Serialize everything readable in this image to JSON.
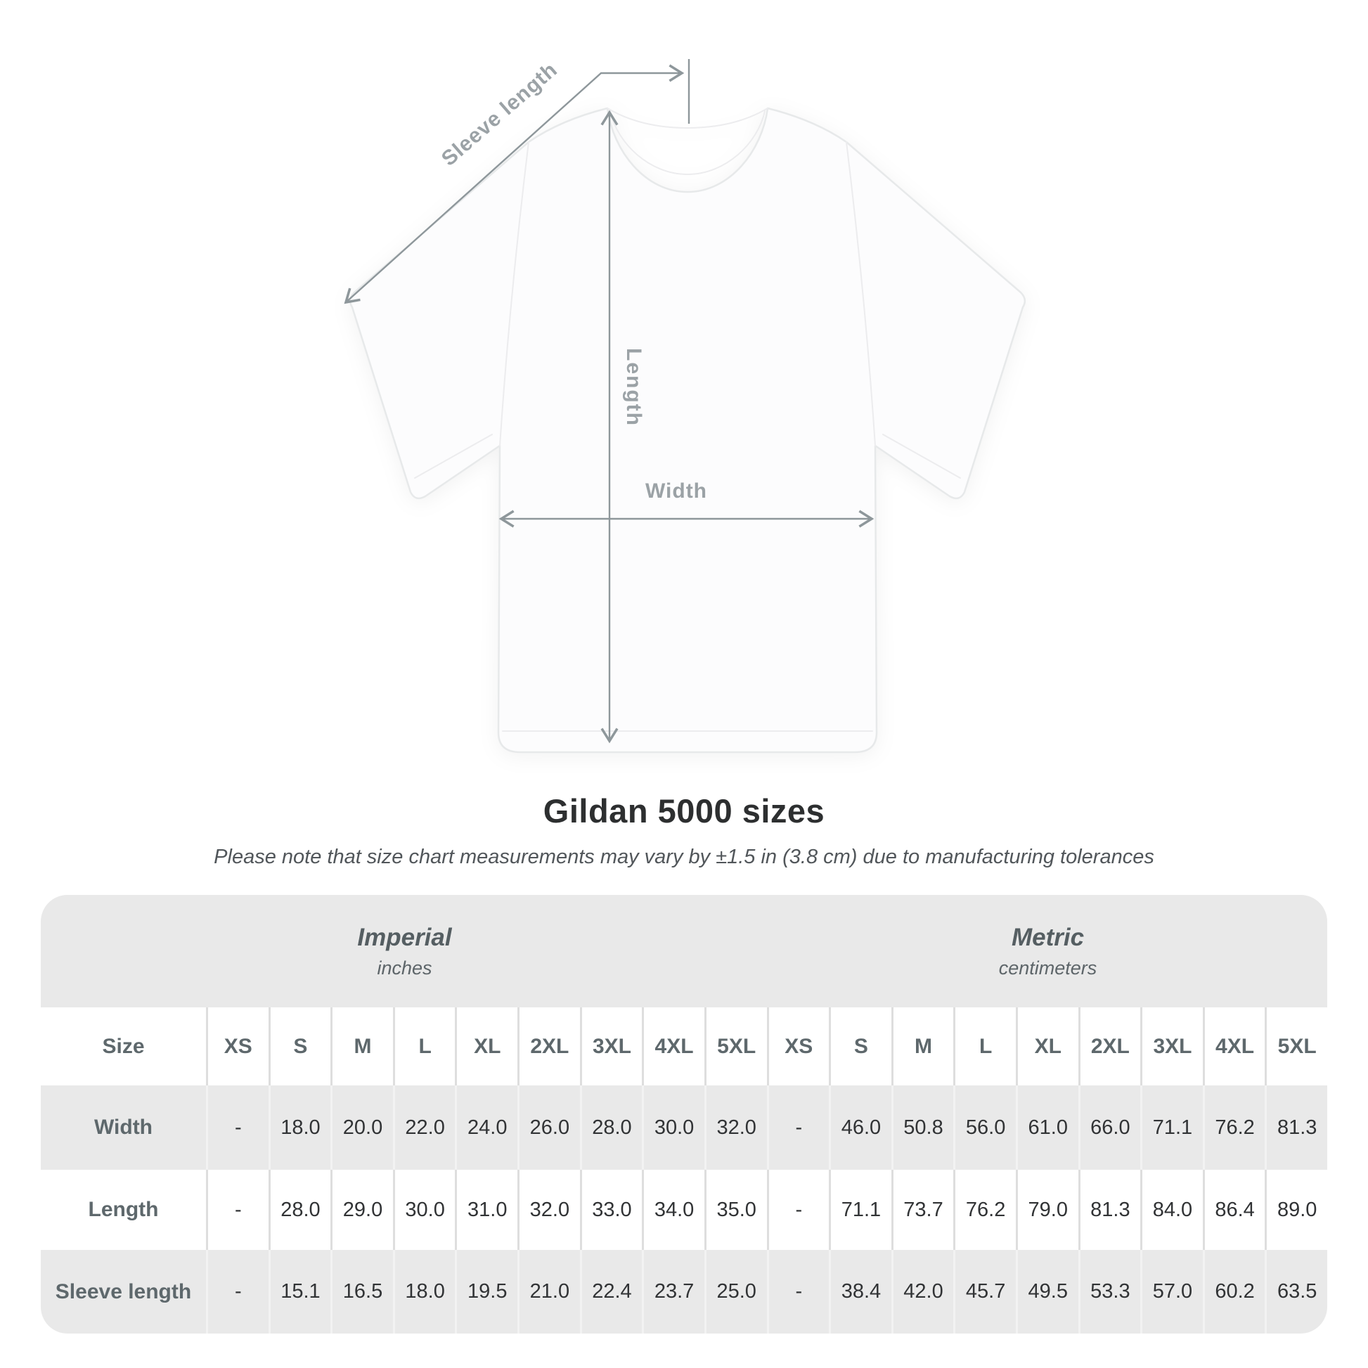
{
  "diagram": {
    "labels": {
      "sleeve_length": "Sleeve length",
      "length": "Length",
      "width": "Width"
    },
    "colors": {
      "dimension_line": "#8e979b",
      "dimension_label": "#9ba2a6",
      "shirt_fill": "#fcfcfd",
      "shirt_outline": "#e7e9ea"
    }
  },
  "header": {
    "title": "Gildan 5000 sizes",
    "note": "Please note that size chart measurements may vary by ±1.5 in (3.8 cm) due to manufacturing tolerances"
  },
  "table": {
    "band_color": "#e9e9e9",
    "unit_groups": [
      {
        "label": "Imperial",
        "sublabel": "inches"
      },
      {
        "label": "Metric",
        "sublabel": "centimeters"
      }
    ],
    "size_col_header": "Size",
    "sizes": [
      "XS",
      "S",
      "M",
      "L",
      "XL",
      "2XL",
      "3XL",
      "4XL",
      "5XL"
    ],
    "rows": [
      {
        "label": "Width",
        "values": [
          "-",
          "18.0",
          "20.0",
          "22.0",
          "24.0",
          "26.0",
          "28.0",
          "30.0",
          "32.0",
          "-",
          "46.0",
          "50.8",
          "56.0",
          "61.0",
          "66.0",
          "71.1",
          "76.2",
          "81.3"
        ]
      },
      {
        "label": "Length",
        "values": [
          "-",
          "28.0",
          "29.0",
          "30.0",
          "31.0",
          "32.0",
          "33.0",
          "34.0",
          "35.0",
          "-",
          "71.1",
          "73.7",
          "76.2",
          "79.0",
          "81.3",
          "84.0",
          "86.4",
          "89.0"
        ]
      },
      {
        "label": "Sleeve length",
        "values": [
          "-",
          "15.1",
          "16.5",
          "18.0",
          "19.5",
          "21.0",
          "22.4",
          "23.7",
          "25.0",
          "-",
          "38.4",
          "42.0",
          "45.7",
          "49.5",
          "53.3",
          "57.0",
          "60.2",
          "63.5"
        ]
      }
    ]
  }
}
